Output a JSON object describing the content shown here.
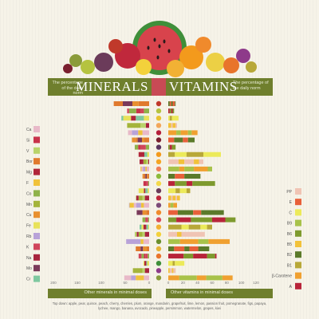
{
  "header": {
    "left_title": "MINERALS",
    "right_title": "VITAMINS",
    "left_note": "The percentage of the daily norm",
    "right_note": "The percentage of the daily norm"
  },
  "footer": {
    "left_label": "Other minerals in minimal doses",
    "right_label": "Other vitamins in minimal doses",
    "note": "Top down: apple, pear, quince, peach, cherry, cherries, plum, orange, mandarin, grapefruit, lime, lemon, passion fruit, pomegranate, figs, papaya, lychee, mango, banana, avocado, pineapple, persimmon, watermelon, grapes, kiwi"
  },
  "colors": {
    "banner": "#6f7f2d",
    "center": "#c84a55",
    "background": "#f6f3e8"
  },
  "chart_data": {
    "type": "bar",
    "title": "",
    "categories": [
      "apple",
      "pear",
      "quince",
      "peach",
      "cherry",
      "cherries",
      "plum",
      "orange",
      "mandarin",
      "grapefruit",
      "lime",
      "lemon",
      "passion fruit",
      "pomegranate",
      "figs",
      "papaya",
      "lychee",
      "mango",
      "banana",
      "avocado",
      "pineapple",
      "persimmon",
      "watermelon",
      "grapes",
      "kiwi"
    ],
    "fruit_colors": [
      "#c0392b",
      "#b5c340",
      "#e8c232",
      "#f2a65a",
      "#b51f3a",
      "#7a1f2f",
      "#5b3560",
      "#f39a1c",
      "#f5a623",
      "#ef7f5a",
      "#8dbb3a",
      "#f4d94a",
      "#6b3b5a",
      "#c0283c",
      "#7c4a78",
      "#f08a2c",
      "#d94b5a",
      "#f2b134",
      "#f3d13b",
      "#6a8f2d",
      "#e5b53a",
      "#e9742b",
      "#3f8f3a",
      "#8e3a8a",
      "#8a9b3a"
    ],
    "minerals": {
      "axis": "left",
      "ticks": [
        0,
        50,
        100,
        150,
        200
      ],
      "legend": [
        {
          "label": "Ca",
          "color": "#e8b9c8"
        },
        {
          "label": "Si",
          "color": "#c8324a"
        },
        {
          "label": "V",
          "color": "#b9d36a"
        },
        {
          "label": "Bor",
          "color": "#e07a2e"
        },
        {
          "label": "Mg",
          "color": "#b0263a"
        },
        {
          "label": "F",
          "color": "#f0c23a"
        },
        {
          "label": "Co",
          "color": "#8fb24a"
        },
        {
          "label": "Mn",
          "color": "#a4b43a"
        },
        {
          "label": "Cu",
          "color": "#e8902f"
        },
        {
          "label": "Fe",
          "color": "#e8e25a"
        },
        {
          "label": "Rb",
          "color": "#b8a2d8"
        },
        {
          "label": "K",
          "color": "#d0455a"
        },
        {
          "label": "Na",
          "color": "#a8243e"
        },
        {
          "label": "Mo",
          "color": "#7a3a5a"
        },
        {
          "label": "Cr",
          "color": "#7fc8a0"
        }
      ],
      "totals": [
        74,
        46,
        58,
        46,
        44,
        36,
        30,
        22,
        20,
        18,
        14,
        12,
        22,
        28,
        42,
        26,
        14,
        20,
        30,
        48,
        28,
        22,
        12,
        34,
        52
      ]
    },
    "vitamins": {
      "axis": "right",
      "ticks": [
        0,
        20,
        40,
        60,
        80,
        100,
        120
      ],
      "legend": [
        {
          "label": "PP",
          "color": "#f0c4b4"
        },
        {
          "label": "E",
          "color": "#e8603a"
        },
        {
          "label": "C",
          "color": "#ecea5a"
        },
        {
          "label": "B9",
          "color": "#a8c24a"
        },
        {
          "label": "B6",
          "color": "#7e9a2e"
        },
        {
          "label": "B5",
          "color": "#f2c23a"
        },
        {
          "label": "B2",
          "color": "#5b7a2a"
        },
        {
          "label": "B1",
          "color": "#b8a838"
        },
        {
          "label": "β-Carotene",
          "color": "#f0a030"
        },
        {
          "label": "A",
          "color": "#b8243a"
        }
      ],
      "totals": [
        10,
        8,
        14,
        12,
        40,
        36,
        10,
        72,
        48,
        60,
        44,
        64,
        30,
        16,
        12,
        76,
        92,
        60,
        50,
        84,
        56,
        66,
        22,
        10,
        88
      ]
    }
  }
}
